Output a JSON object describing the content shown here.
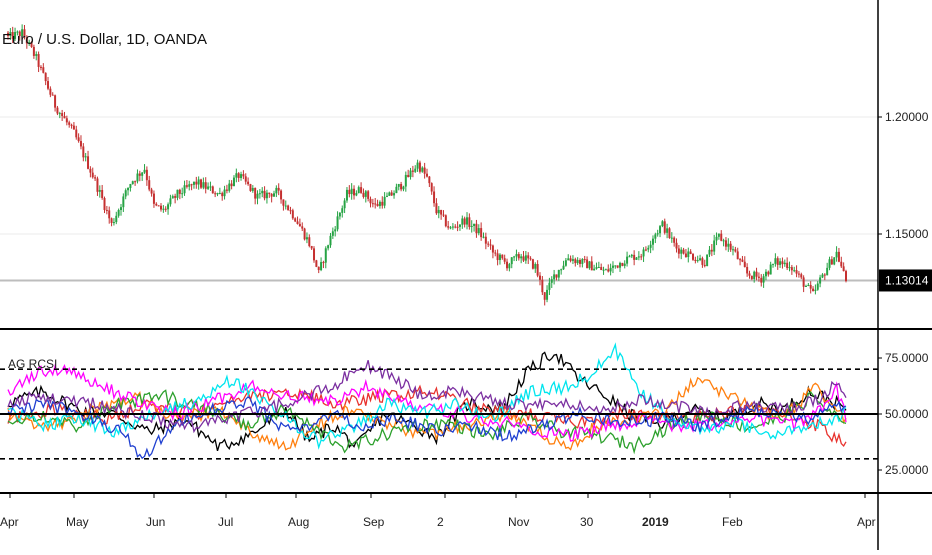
{
  "chart_data": [
    {
      "type": "candlestick",
      "title": "Euro / U.S. Dollar, 1D, OANDA",
      "ylim": [
        1.1,
        1.24
      ],
      "yticks": [
        {
          "value": 1.2,
          "label": "1.20000"
        },
        {
          "value": 1.15,
          "label": "1.15000"
        }
      ],
      "last_price": {
        "value": 1.13014,
        "label": "1.13014"
      },
      "colors": {
        "up": "#26a344",
        "down": "#c53030",
        "price_tag": "#000000",
        "last_price_line": "#bdbdbd"
      },
      "x_labels": [
        "Apr",
        "May",
        "Jun",
        "Jul",
        "Aug",
        "Sep",
        "2",
        "Nov",
        "30",
        "2019",
        "Feb",
        "Apr"
      ],
      "x_label_bold": [
        false,
        false,
        false,
        false,
        false,
        false,
        false,
        false,
        false,
        true,
        false,
        false
      ],
      "close_anchors": [
        [
          0,
          1.234
        ],
        [
          6,
          1.236
        ],
        [
          12,
          1.225
        ],
        [
          20,
          1.205
        ],
        [
          28,
          1.193
        ],
        [
          36,
          1.175
        ],
        [
          40,
          1.165
        ],
        [
          44,
          1.154
        ],
        [
          52,
          1.172
        ],
        [
          58,
          1.178
        ],
        [
          62,
          1.162
        ],
        [
          66,
          1.16
        ],
        [
          72,
          1.167
        ],
        [
          80,
          1.172
        ],
        [
          90,
          1.167
        ],
        [
          98,
          1.175
        ],
        [
          106,
          1.166
        ],
        [
          114,
          1.168
        ],
        [
          122,
          1.157
        ],
        [
          128,
          1.146
        ],
        [
          132,
          1.133
        ],
        [
          136,
          1.146
        ],
        [
          144,
          1.167
        ],
        [
          150,
          1.169
        ],
        [
          156,
          1.162
        ],
        [
          162,
          1.166
        ],
        [
          168,
          1.172
        ],
        [
          174,
          1.18
        ],
        [
          178,
          1.174
        ],
        [
          182,
          1.16
        ],
        [
          188,
          1.152
        ],
        [
          194,
          1.156
        ],
        [
          200,
          1.151
        ],
        [
          206,
          1.142
        ],
        [
          212,
          1.137
        ],
        [
          218,
          1.141
        ],
        [
          224,
          1.136
        ],
        [
          228,
          1.123
        ],
        [
          232,
          1.132
        ],
        [
          238,
          1.14
        ],
        [
          246,
          1.137
        ],
        [
          254,
          1.134
        ],
        [
          262,
          1.139
        ],
        [
          270,
          1.142
        ],
        [
          274,
          1.149
        ],
        [
          278,
          1.154
        ],
        [
          284,
          1.144
        ],
        [
          290,
          1.141
        ],
        [
          296,
          1.138
        ],
        [
          302,
          1.149
        ],
        [
          308,
          1.143
        ],
        [
          314,
          1.133
        ],
        [
          320,
          1.131
        ],
        [
          326,
          1.138
        ],
        [
          332,
          1.137
        ],
        [
          338,
          1.129
        ],
        [
          342,
          1.124
        ],
        [
          348,
          1.136
        ],
        [
          352,
          1.142
        ],
        [
          356,
          1.13
        ]
      ]
    },
    {
      "type": "line",
      "title": "AG RCSI",
      "ylim": [
        22,
        82
      ],
      "yticks": [
        {
          "value": 75,
          "label": "75.0000"
        },
        {
          "value": 50,
          "label": "50.0000"
        },
        {
          "value": 25,
          "label": "25.0000"
        }
      ],
      "levels": [
        {
          "value": 70,
          "style": "dashed"
        },
        {
          "value": 50,
          "style": "solid"
        },
        {
          "value": 30,
          "style": "dashed"
        }
      ],
      "series": [
        {
          "color": "#000000",
          "anchors": [
            [
              0,
              55
            ],
            [
              15,
              60
            ],
            [
              30,
              52
            ],
            [
              45,
              50
            ],
            [
              60,
              42
            ],
            [
              75,
              48
            ],
            [
              90,
              35
            ],
            [
              105,
              42
            ],
            [
              118,
              52
            ],
            [
              128,
              38
            ],
            [
              138,
              45
            ],
            [
              148,
              35
            ],
            [
              160,
              50
            ],
            [
              172,
              45
            ],
            [
              182,
              40
            ],
            [
              196,
              55
            ],
            [
              210,
              52
            ],
            [
              220,
              68
            ],
            [
              232,
              78
            ],
            [
              242,
              66
            ],
            [
              254,
              58
            ],
            [
              264,
              50
            ],
            [
              276,
              45
            ],
            [
              290,
              52
            ],
            [
              304,
              48
            ],
            [
              318,
              55
            ],
            [
              330,
              52
            ],
            [
              340,
              60
            ],
            [
              350,
              56
            ],
            [
              356,
              52
            ]
          ]
        },
        {
          "color": "#e8332e",
          "anchors": [
            [
              0,
              48
            ],
            [
              20,
              52
            ],
            [
              40,
              48
            ],
            [
              60,
              54
            ],
            [
              80,
              50
            ],
            [
              100,
              57
            ],
            [
              120,
              60
            ],
            [
              140,
              54
            ],
            [
              160,
              58
            ],
            [
              180,
              60
            ],
            [
              200,
              52
            ],
            [
              220,
              50
            ],
            [
              240,
              46
            ],
            [
              260,
              50
            ],
            [
              280,
              48
            ],
            [
              300,
              50
            ],
            [
              320,
              52
            ],
            [
              336,
              48
            ],
            [
              346,
              44
            ],
            [
              350,
              40
            ],
            [
              356,
              37
            ]
          ]
        },
        {
          "color": "#ff7f0e",
          "anchors": [
            [
              0,
              50
            ],
            [
              18,
              44
            ],
            [
              36,
              52
            ],
            [
              54,
              58
            ],
            [
              72,
              48
            ],
            [
              90,
              52
            ],
            [
              106,
              40
            ],
            [
              118,
              34
            ],
            [
              130,
              45
            ],
            [
              146,
              52
            ],
            [
              162,
              46
            ],
            [
              178,
              40
            ],
            [
              194,
              45
            ],
            [
              210,
              50
            ],
            [
              226,
              42
            ],
            [
              238,
              34
            ],
            [
              250,
              45
            ],
            [
              266,
              48
            ],
            [
              280,
              52
            ],
            [
              292,
              66
            ],
            [
              304,
              60
            ],
            [
              318,
              52
            ],
            [
              330,
              48
            ],
            [
              342,
              62
            ],
            [
              350,
              54
            ],
            [
              356,
              48
            ]
          ]
        },
        {
          "color": "#2ca02c",
          "anchors": [
            [
              0,
              45
            ],
            [
              15,
              50
            ],
            [
              30,
              44
            ],
            [
              48,
              55
            ],
            [
              66,
              58
            ],
            [
              84,
              52
            ],
            [
              102,
              45
            ],
            [
              118,
              52
            ],
            [
              132,
              42
            ],
            [
              144,
              35
            ],
            [
              158,
              40
            ],
            [
              172,
              45
            ],
            [
              188,
              46
            ],
            [
              204,
              40
            ],
            [
              220,
              48
            ],
            [
              236,
              42
            ],
            [
              252,
              40
            ],
            [
              266,
              36
            ],
            [
              282,
              45
            ],
            [
              298,
              50
            ],
            [
              314,
              44
            ],
            [
              328,
              48
            ],
            [
              342,
              58
            ],
            [
              350,
              50
            ],
            [
              356,
              45
            ]
          ]
        },
        {
          "color": "#ff00ff",
          "anchors": [
            [
              0,
              60
            ],
            [
              12,
              68
            ],
            [
              26,
              70
            ],
            [
              40,
              62
            ],
            [
              56,
              55
            ],
            [
              72,
              50
            ],
            [
              88,
              56
            ],
            [
              104,
              62
            ],
            [
              120,
              58
            ],
            [
              136,
              55
            ],
            [
              152,
              62
            ],
            [
              168,
              55
            ],
            [
              184,
              52
            ],
            [
              200,
              48
            ],
            [
              218,
              45
            ],
            [
              236,
              40
            ],
            [
              254,
              44
            ],
            [
              270,
              48
            ],
            [
              286,
              44
            ],
            [
              302,
              46
            ],
            [
              318,
              48
            ],
            [
              334,
              45
            ],
            [
              346,
              52
            ],
            [
              352,
              62
            ],
            [
              356,
              48
            ]
          ]
        },
        {
          "color": "#00e5ee",
          "anchors": [
            [
              0,
              52
            ],
            [
              14,
              45
            ],
            [
              30,
              48
            ],
            [
              46,
              42
            ],
            [
              62,
              50
            ],
            [
              78,
              55
            ],
            [
              94,
              65
            ],
            [
              106,
              58
            ],
            [
              118,
              48
            ],
            [
              132,
              38
            ],
            [
              148,
              45
            ],
            [
              162,
              55
            ],
            [
              176,
              50
            ],
            [
              190,
              55
            ],
            [
              206,
              48
            ],
            [
              222,
              60
            ],
            [
              238,
              62
            ],
            [
              250,
              70
            ],
            [
              258,
              78
            ],
            [
              268,
              60
            ],
            [
              282,
              48
            ],
            [
              296,
              42
            ],
            [
              310,
              46
            ],
            [
              326,
              40
            ],
            [
              340,
              45
            ],
            [
              350,
              48
            ],
            [
              356,
              50
            ]
          ]
        },
        {
          "color": "#1f3fd0",
          "anchors": [
            [
              0,
              52
            ],
            [
              16,
              54
            ],
            [
              32,
              50
            ],
            [
              48,
              42
            ],
            [
              58,
              30
            ],
            [
              70,
              45
            ],
            [
              86,
              52
            ],
            [
              102,
              56
            ],
            [
              114,
              45
            ],
            [
              124,
              42
            ],
            [
              136,
              50
            ],
            [
              150,
              45
            ],
            [
              166,
              48
            ],
            [
              182,
              42
            ],
            [
              198,
              45
            ],
            [
              212,
              40
            ],
            [
              226,
              44
            ],
            [
              244,
              50
            ],
            [
              262,
              46
            ],
            [
              278,
              48
            ],
            [
              294,
              45
            ],
            [
              310,
              50
            ],
            [
              326,
              52
            ],
            [
              340,
              48
            ],
            [
              350,
              55
            ],
            [
              356,
              52
            ]
          ]
        },
        {
          "color": "#7b2fa0",
          "anchors": [
            [
              0,
              55
            ],
            [
              14,
              58
            ],
            [
              30,
              56
            ],
            [
              46,
              52
            ],
            [
              62,
              48
            ],
            [
              78,
              44
            ],
            [
              94,
              48
            ],
            [
              110,
              52
            ],
            [
              126,
              58
            ],
            [
              140,
              64
            ],
            [
              152,
              72
            ],
            [
              164,
              66
            ],
            [
              176,
              58
            ],
            [
              190,
              60
            ],
            [
              204,
              56
            ],
            [
              220,
              54
            ],
            [
              236,
              56
            ],
            [
              252,
              52
            ],
            [
              266,
              56
            ],
            [
              282,
              54
            ],
            [
              298,
              50
            ],
            [
              314,
              54
            ],
            [
              330,
              52
            ],
            [
              344,
              56
            ],
            [
              352,
              64
            ],
            [
              356,
              56
            ]
          ]
        }
      ]
    }
  ]
}
